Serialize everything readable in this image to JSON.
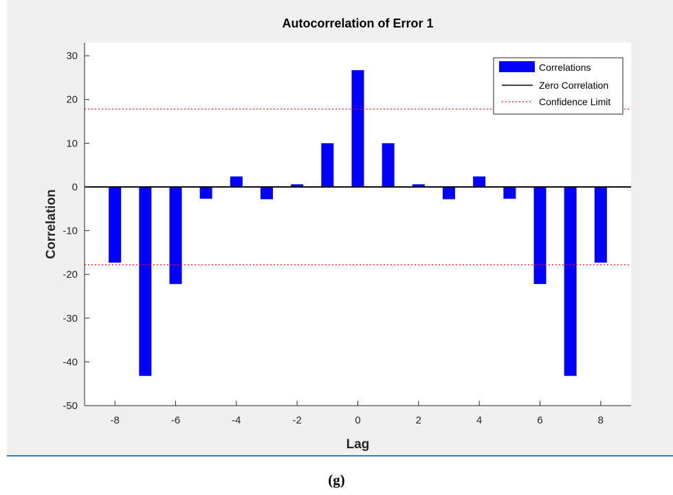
{
  "caption": "(g)",
  "chart_data": {
    "type": "bar",
    "title": "Autocorrelation of Error 1",
    "xlabel": "Lag",
    "ylabel": "Correlation",
    "x": [
      -8,
      -7,
      -6,
      -5,
      -4,
      -3,
      -2,
      -1,
      0,
      1,
      2,
      3,
      4,
      5,
      6,
      7,
      8
    ],
    "values": [
      -17.3,
      -43.2,
      -22.2,
      -2.7,
      2.4,
      -2.8,
      0.6,
      10.0,
      26.7,
      10.0,
      0.6,
      -2.8,
      2.4,
      -2.7,
      -22.2,
      -43.2,
      -17.3
    ],
    "xlim": [
      -9,
      9
    ],
    "ylim": [
      -50,
      33
    ],
    "xticks": [
      -8,
      -6,
      -4,
      -2,
      0,
      2,
      4,
      6,
      8
    ],
    "yticks": [
      -50,
      -40,
      -30,
      -20,
      -10,
      0,
      10,
      20,
      30
    ],
    "zero_line": 0,
    "confidence_limit": 17.8,
    "legend": {
      "placement": "top-right",
      "entries": [
        "Correlations",
        "Zero Correlation",
        "Confidence Limit"
      ]
    },
    "colors": {
      "bars": "#0000ff",
      "zero_line": "#000000",
      "confidence": "#ff0000",
      "figure_bg": "#f0f0f0",
      "axes_bg": "#ffffff"
    }
  }
}
